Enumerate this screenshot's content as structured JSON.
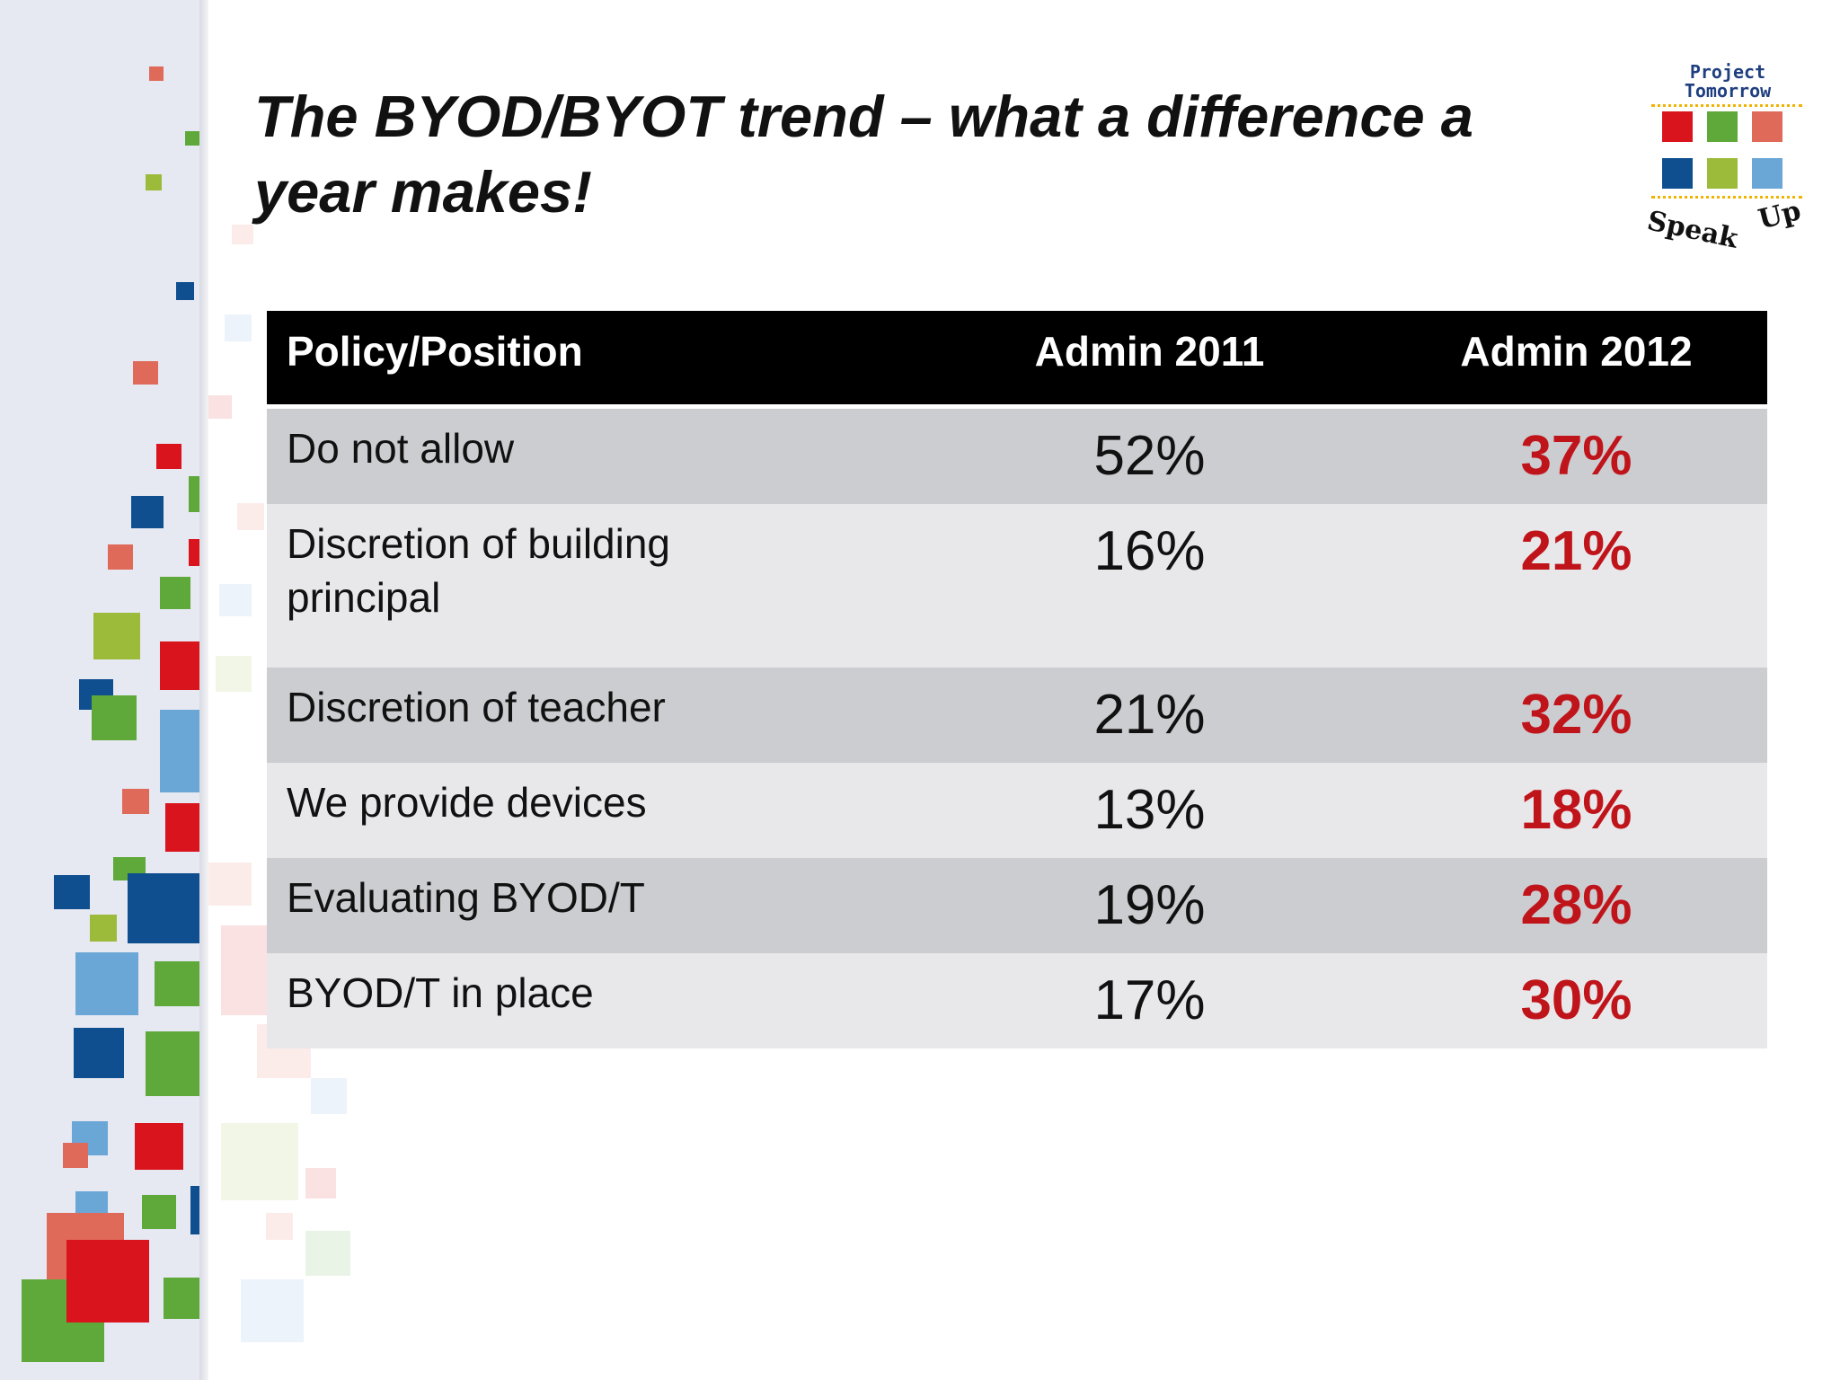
{
  "slide": {
    "title": "The BYOD/BYOT trend – what a difference a year makes!"
  },
  "logo": {
    "line1": "Project",
    "line2": "Tomorrow",
    "word1": "Speak",
    "word2": "Up",
    "colors": [
      "#d9141c",
      "#5fa83a",
      "#e06a5a",
      "#0f4f8f",
      "#9dbb3a",
      "#6aa6d6"
    ]
  },
  "table": {
    "headers": [
      "Policy/Position",
      "Admin 2011",
      "Admin 2012"
    ],
    "rows": [
      {
        "label": "Do not allow",
        "admin_2011": "52%",
        "admin_2012": "37%"
      },
      {
        "label": "Discretion of building principal",
        "admin_2011": "16%",
        "admin_2012": "21%"
      },
      {
        "label": "Discretion of teacher",
        "admin_2011": "21%",
        "admin_2012": "32%"
      },
      {
        "label": "We provide devices",
        "admin_2011": "13%",
        "admin_2012": "18%"
      },
      {
        "label": "Evaluating BYOD/T",
        "admin_2011": "19%",
        "admin_2012": "28%"
      },
      {
        "label": "BYOD/T in place",
        "admin_2011": "17%",
        "admin_2012": "30%"
      }
    ],
    "highlight_color": "#c0141b"
  }
}
